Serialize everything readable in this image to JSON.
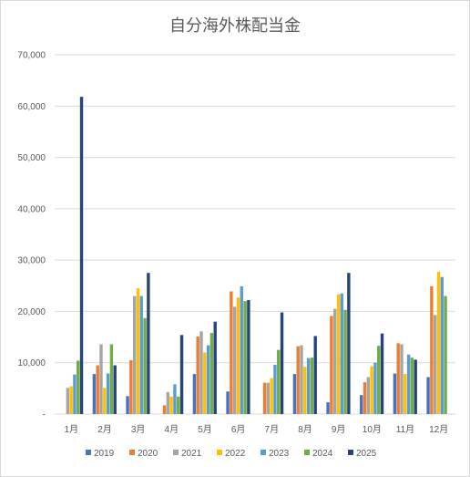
{
  "chart_data": {
    "type": "bar",
    "title": "自分海外株配当金",
    "xlabel": "",
    "ylabel": "",
    "ylim": [
      0,
      70000
    ],
    "yticks": [
      "-",
      "10,000",
      "20,000",
      "30,000",
      "40,000",
      "50,000",
      "60,000",
      "70,000"
    ],
    "grid": true,
    "legend_position": "bottom",
    "categories": [
      "1月",
      "2月",
      "3月",
      "4月",
      "5月",
      "6月",
      "7月",
      "8月",
      "9月",
      "10月",
      "11月",
      "12月"
    ],
    "series": [
      {
        "name": "2019",
        "color": "#4472C4",
        "values": [
          0,
          7800,
          3500,
          0,
          7800,
          4400,
          0,
          7800,
          2300,
          3700,
          7900,
          7200
        ]
      },
      {
        "name": "2020",
        "color": "#ED7D31",
        "values": [
          0,
          9500,
          10500,
          1700,
          15100,
          23900,
          6100,
          13200,
          19100,
          6200,
          13800,
          24900
        ]
      },
      {
        "name": "2021",
        "color": "#A5A5A5",
        "values": [
          5100,
          13600,
          23000,
          4300,
          16100,
          20900,
          6100,
          13400,
          20500,
          7200,
          13600,
          19300
        ]
      },
      {
        "name": "2022",
        "color": "#FFC000",
        "values": [
          5400,
          5100,
          24500,
          3400,
          12000,
          22700,
          7000,
          9200,
          23300,
          9300,
          7800,
          27700
        ]
      },
      {
        "name": "2023",
        "color": "#5B9BD5",
        "values": [
          7700,
          7900,
          23000,
          5800,
          13400,
          24900,
          9600,
          10900,
          23500,
          10000,
          11600,
          26700
        ]
      },
      {
        "name": "2024",
        "color": "#70AD47",
        "values": [
          10400,
          13600,
          18700,
          3400,
          15800,
          22000,
          12500,
          11000,
          20300,
          13300,
          11000,
          23000
        ]
      },
      {
        "name": "2025",
        "color": "#264478",
        "values": [
          61800,
          9500,
          27500,
          15400,
          18000,
          22200,
          19800,
          15200,
          27500,
          15700,
          10600,
          0
        ]
      }
    ]
  }
}
